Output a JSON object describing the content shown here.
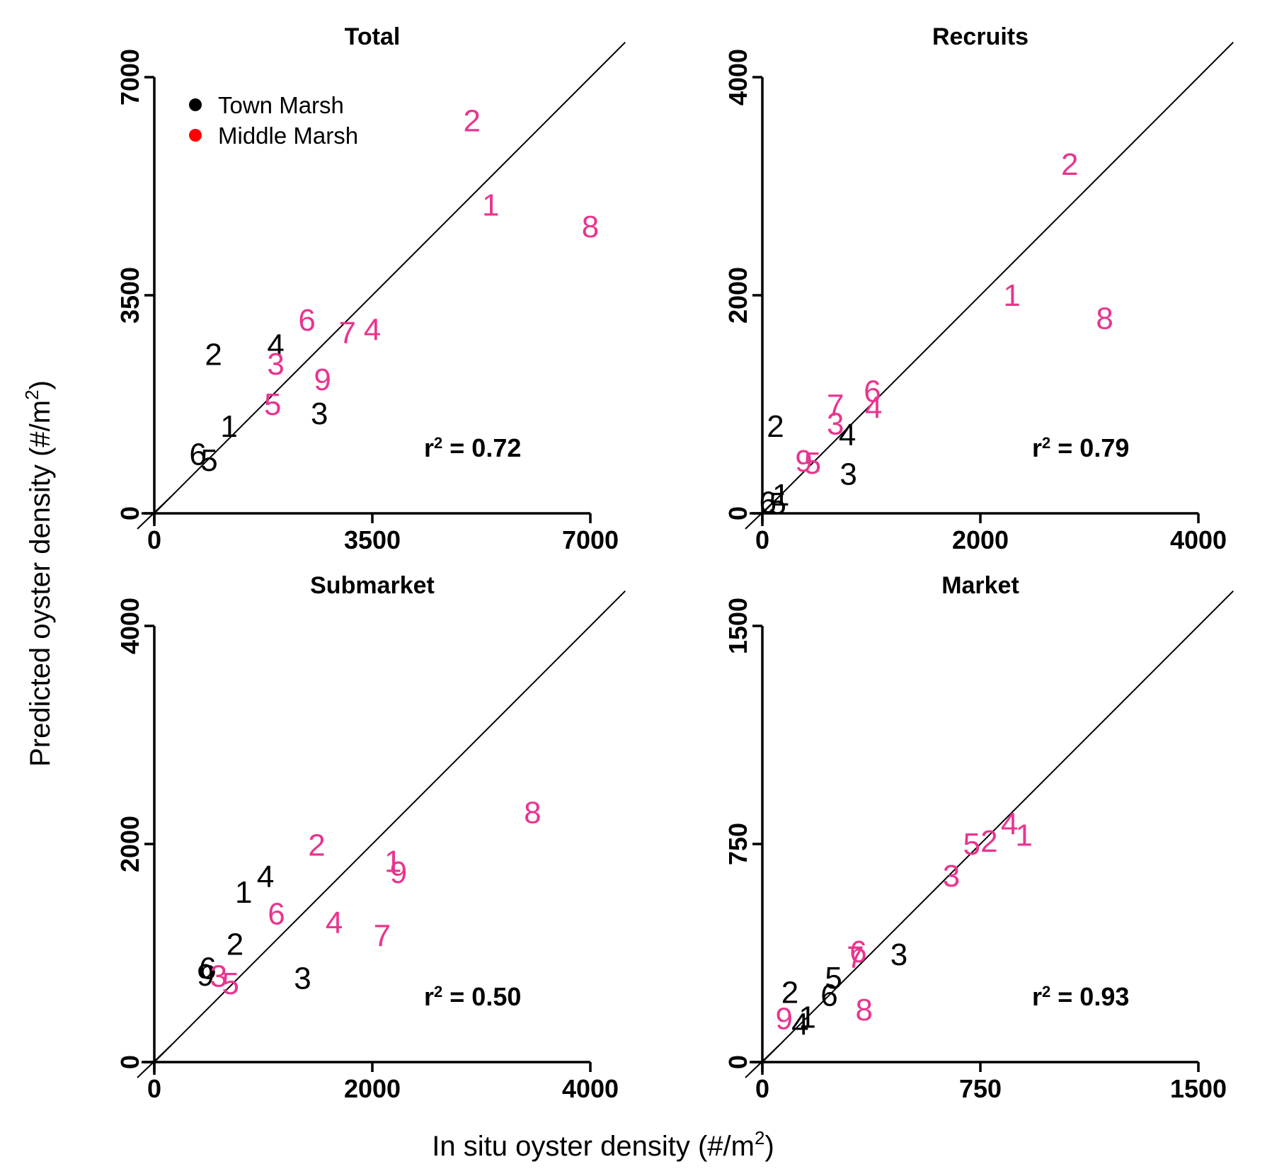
{
  "figure": {
    "xlabel": "In situ oyster density (#/m",
    "xlabel_sup": "2",
    "xlabel_end": ")",
    "ylabel": "Predicted oyster density (#/m",
    "ylabel_sup": "2",
    "ylabel_end": ")"
  },
  "legend": {
    "items": [
      {
        "label": "Town Marsh",
        "color": "#000000"
      },
      {
        "label": "Middle Marsh",
        "color": "#ff0000"
      }
    ]
  },
  "colors": {
    "town": "#000000",
    "middle": "#e8358f"
  },
  "chart_data": [
    {
      "type": "scatter",
      "title": "Total",
      "r2_prefix": "r",
      "r2_sup": "2",
      "r2_value": " = 0.72",
      "xlim": [
        0,
        7000
      ],
      "ylim": [
        0,
        7000
      ],
      "xticks": [
        0,
        3500,
        7000
      ],
      "xtick_labels": [
        "0",
        "3500",
        "7000"
      ],
      "yticks": [
        0,
        3500,
        7000
      ],
      "ytick_labels": [
        "0",
        "3500",
        "7000"
      ],
      "series": [
        {
          "name": "Town Marsh",
          "points": [
            {
              "label": "2",
              "x": 950,
              "y": 2550
            },
            {
              "label": "4",
              "x": 1950,
              "y": 2700
            },
            {
              "label": "1",
              "x": 1200,
              "y": 1400
            },
            {
              "label": "3",
              "x": 2650,
              "y": 1600
            },
            {
              "label": "6",
              "x": 700,
              "y": 950
            },
            {
              "label": "5",
              "x": 880,
              "y": 850
            }
          ]
        },
        {
          "name": "Middle Marsh",
          "points": [
            {
              "label": "2",
              "x": 5100,
              "y": 6300
            },
            {
              "label": "1",
              "x": 5400,
              "y": 4950
            },
            {
              "label": "8",
              "x": 7000,
              "y": 4600
            },
            {
              "label": "6",
              "x": 2450,
              "y": 3100
            },
            {
              "label": "7",
              "x": 3100,
              "y": 2900
            },
            {
              "label": "4",
              "x": 3500,
              "y": 2950
            },
            {
              "label": "3",
              "x": 1950,
              "y": 2400
            },
            {
              "label": "9",
              "x": 2700,
              "y": 2150
            },
            {
              "label": "5",
              "x": 1900,
              "y": 1750
            }
          ]
        }
      ]
    },
    {
      "type": "scatter",
      "title": "Recruits",
      "r2_prefix": "r",
      "r2_sup": "2",
      "r2_value": " = 0.79",
      "xlim": [
        0,
        4000
      ],
      "ylim": [
        0,
        4000
      ],
      "xticks": [
        0,
        2000,
        4000
      ],
      "xtick_labels": [
        "0",
        "2000",
        "4000"
      ],
      "yticks": [
        0,
        2000,
        4000
      ],
      "ytick_labels": [
        "0",
        "2000",
        "4000"
      ],
      "series": [
        {
          "name": "Town Marsh",
          "points": [
            {
              "label": "2",
              "x": 120,
              "y": 800
            },
            {
              "label": "4",
              "x": 780,
              "y": 720
            },
            {
              "label": "3",
              "x": 790,
              "y": 360
            },
            {
              "label": "1",
              "x": 170,
              "y": 170
            },
            {
              "label": "6",
              "x": 50,
              "y": 100
            },
            {
              "label": "5",
              "x": 140,
              "y": 90
            }
          ]
        },
        {
          "name": "Middle Marsh",
          "points": [
            {
              "label": "2",
              "x": 2820,
              "y": 3200
            },
            {
              "label": "1",
              "x": 2290,
              "y": 2000
            },
            {
              "label": "8",
              "x": 3140,
              "y": 1790
            },
            {
              "label": "7",
              "x": 670,
              "y": 990
            },
            {
              "label": "6",
              "x": 1010,
              "y": 1120
            },
            {
              "label": "4",
              "x": 1020,
              "y": 970
            },
            {
              "label": "3",
              "x": 670,
              "y": 820
            },
            {
              "label": "9",
              "x": 380,
              "y": 480
            },
            {
              "label": "5",
              "x": 460,
              "y": 460
            }
          ]
        }
      ]
    },
    {
      "type": "scatter",
      "title": "Submarket",
      "r2_prefix": "r",
      "r2_sup": "2",
      "r2_value": " = 0.50",
      "xlim": [
        0,
        4000
      ],
      "ylim": [
        0,
        4000
      ],
      "xticks": [
        0,
        2000,
        4000
      ],
      "xtick_labels": [
        "0",
        "2000",
        "4000"
      ],
      "yticks": [
        0,
        2000,
        4000
      ],
      "ytick_labels": [
        "0",
        "2000",
        "4000"
      ],
      "series": [
        {
          "name": "Town Marsh",
          "points": [
            {
              "label": "4",
              "x": 1020,
              "y": 1700
            },
            {
              "label": "1",
              "x": 820,
              "y": 1560
            },
            {
              "label": "2",
              "x": 740,
              "y": 1080
            },
            {
              "label": "3",
              "x": 1360,
              "y": 770
            },
            {
              "label": "6",
              "x": 490,
              "y": 860
            },
            {
              "label": "9",
              "x": 470,
              "y": 800
            }
          ]
        },
        {
          "name": "Middle Marsh",
          "points": [
            {
              "label": "8",
              "x": 3470,
              "y": 2290
            },
            {
              "label": "2",
              "x": 1490,
              "y": 1990
            },
            {
              "label": "1",
              "x": 2190,
              "y": 1840
            },
            {
              "label": "9",
              "x": 2240,
              "y": 1740
            },
            {
              "label": "6",
              "x": 1120,
              "y": 1360
            },
            {
              "label": "4",
              "x": 1650,
              "y": 1280
            },
            {
              "label": "7",
              "x": 2090,
              "y": 1160
            },
            {
              "label": "3",
              "x": 590,
              "y": 790
            },
            {
              "label": "5",
              "x": 700,
              "y": 720
            }
          ]
        }
      ]
    },
    {
      "type": "scatter",
      "title": "Market",
      "r2_prefix": "r",
      "r2_sup": "2",
      "r2_value": " = 0.93",
      "xlim": [
        0,
        1500
      ],
      "ylim": [
        0,
        1500
      ],
      "xticks": [
        0,
        750,
        1500
      ],
      "xtick_labels": [
        "0",
        "750",
        "1500"
      ],
      "yticks": [
        0,
        750,
        1500
      ],
      "ytick_labels": [
        "0",
        "750",
        "1500"
      ],
      "series": [
        {
          "name": "Town Marsh",
          "points": [
            {
              "label": "3",
              "x": 470,
              "y": 370
            },
            {
              "label": "5",
              "x": 245,
              "y": 290
            },
            {
              "label": "6",
              "x": 230,
              "y": 230
            },
            {
              "label": "2",
              "x": 95,
              "y": 240
            },
            {
              "label": "1",
              "x": 155,
              "y": 155
            },
            {
              "label": "4",
              "x": 130,
              "y": 130
            }
          ]
        },
        {
          "name": "Middle Marsh",
          "points": [
            {
              "label": "4",
              "x": 850,
              "y": 820
            },
            {
              "label": "1",
              "x": 900,
              "y": 780
            },
            {
              "label": "5",
              "x": 720,
              "y": 750
            },
            {
              "label": "2",
              "x": 780,
              "y": 760
            },
            {
              "label": "3",
              "x": 650,
              "y": 640
            },
            {
              "label": "6",
              "x": 330,
              "y": 380
            },
            {
              "label": "7",
              "x": 320,
              "y": 360
            },
            {
              "label": "8",
              "x": 350,
              "y": 180
            },
            {
              "label": "9",
              "x": 75,
              "y": 150
            }
          ]
        }
      ]
    }
  ]
}
